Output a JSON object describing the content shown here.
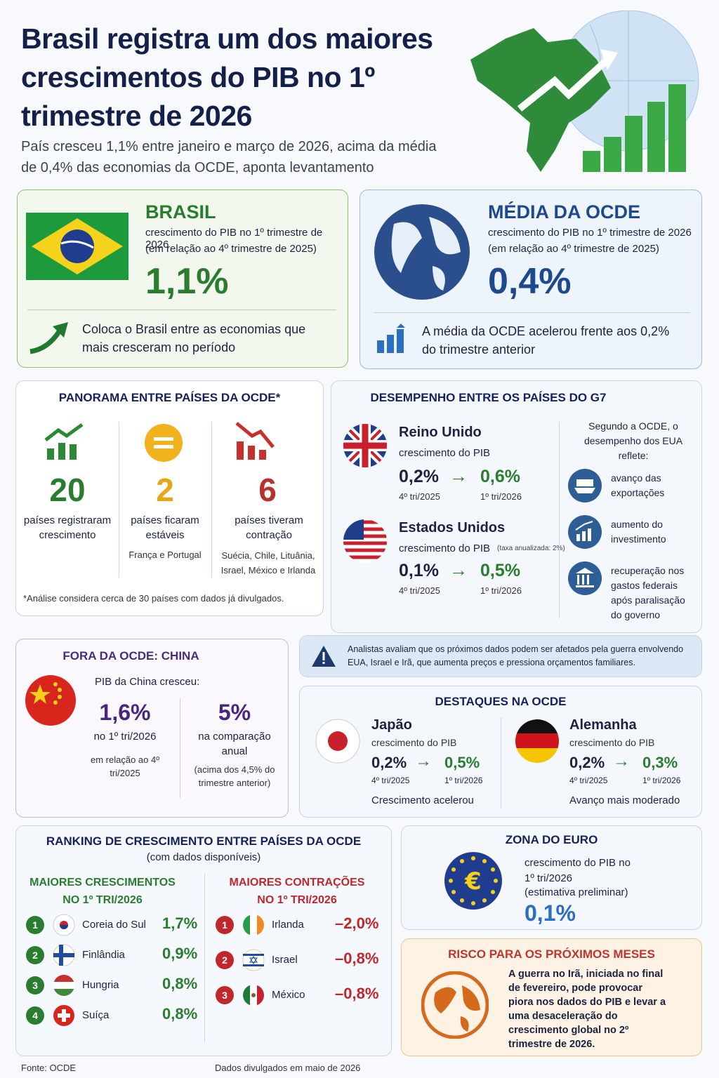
{
  "header": {
    "title": "Brasil registra um dos maiores crescimentos do PIB no 1º trimestre de 2026",
    "subtitle": "País cresceu 1,1% entre janeiro e março de 2026, acima da média de 0,4% das economias da OCDE, aponta levantamento"
  },
  "brasil": {
    "title": "BRASIL",
    "desc": "crescimento do PIB no 1º trimestre de 2026",
    "note": "(em relação ao 4º trimestre de 2025)",
    "value": "1,1%",
    "footer": "Coloca o Brasil entre as economias que mais cresceram no período"
  },
  "ocde": {
    "title": "MÉDIA DA OCDE",
    "desc": "crescimento do PIB no 1º trimestre de 2026",
    "note": "(em relação ao 4º trimestre de 2025)",
    "value": "0,4%",
    "footer": "A média da OCDE acelerou frente aos 0,2% do trimestre anterior"
  },
  "panorama": {
    "title": "PANORAMA ENTRE PAÍSES DA OCDE*",
    "items": [
      {
        "value": "20",
        "label": "países registraram crescimento"
      },
      {
        "value": "2",
        "label": "países ficaram estáveis",
        "detail": "França e Portugal"
      },
      {
        "value": "6",
        "label": "países tiveram contração",
        "detail": "Suécia, Chile, Lituânia, Israel, México e Irlanda"
      }
    ],
    "footnote": "*Análise considera cerca de 30 países com dados já divulgados."
  },
  "g7": {
    "title": "DESEMPENHO ENTRE OS PAÍSES DO G7",
    "countries": [
      {
        "name": "Reino Unido",
        "desc": "crescimento do PIB",
        "before": "0,2%",
        "before_label": "4º tri/2025",
        "after": "0,6%",
        "after_label": "1º tri/2026"
      },
      {
        "name": "Estados Unidos",
        "desc": "crescimento do PIB",
        "note": "(taxa anualizada: 2%)",
        "before": "0,1%",
        "before_label": "4º tri/2025",
        "after": "0,5%",
        "after_label": "1º tri/2026"
      }
    ],
    "intro": "Segundo a OCDE, o desempenho dos EUA reflete:",
    "factors": [
      "avanço das exportações",
      "aumento do investimento",
      "recuperação nos gastos federais após paralisação do governo"
    ]
  },
  "china": {
    "title": "FORA DA OCDE: CHINA",
    "intro": "PIB da China cresceu:",
    "items": [
      {
        "value": "1,6%",
        "label": "no 1º tri/2026",
        "note": "em relação ao 4º tri/2025"
      },
      {
        "value": "5%",
        "label": "na comparação anual",
        "note": "(acima dos 4,5% do trimestre anterior)"
      }
    ]
  },
  "alert": {
    "text": "Analistas avaliam que os próximos dados podem ser afetados pela guerra envolvendo EUA, Israel e Irã, que aumenta preços e pressiona orçamentos familiares."
  },
  "destaques": {
    "title": "DESTAQUES NA OCDE",
    "countries": [
      {
        "name": "Japão",
        "desc": "crescimento do PIB",
        "before": "0,2%",
        "before_label": "4º tri/2025",
        "after": "0,5%",
        "after_label": "1º tri/2026",
        "footer": "Crescimento acelerou"
      },
      {
        "name": "Alemanha",
        "desc": "crescimento do PIB",
        "before": "0,2%",
        "before_label": "4º tri/2025",
        "after": "0,3%",
        "after_label": "1º tri/2026",
        "footer": "Avanço mais moderado"
      }
    ]
  },
  "ranking": {
    "title": "RANKING DE CRESCIMENTO ENTRE PAÍSES DA OCDE",
    "subtitle": "(com dados disponíveis)",
    "top": {
      "title": "MAIORES CRESCIMENTOS NO 1º TRI/2026",
      "rows": [
        {
          "rank": 1,
          "country": "Coreia do Sul",
          "value": "1,7%"
        },
        {
          "rank": 2,
          "country": "Finlândia",
          "value": "0,9%"
        },
        {
          "rank": 3,
          "country": "Hungria",
          "value": "0,8%"
        },
        {
          "rank": 4,
          "country": "Suíça",
          "value": "0,8%"
        }
      ]
    },
    "bottom": {
      "title": "MAIORES CONTRAÇÕES NO 1º TRI/2026",
      "rows": [
        {
          "rank": 1,
          "country": "Irlanda",
          "value": "–2,0%"
        },
        {
          "rank": 2,
          "country": "Israel",
          "value": "–0,8%"
        },
        {
          "rank": 3,
          "country": "México",
          "value": "–0,8%"
        }
      ]
    }
  },
  "euro": {
    "title": "ZONA DO EURO",
    "desc": "crescimento do PIB no 1º tri/2026",
    "note": "(estimativa preliminar)",
    "value": "0,1%"
  },
  "risk": {
    "title": "RISCO PARA OS PRÓXIMOS MESES",
    "text": "A guerra no Irã, iniciada no final de fevereiro, pode provocar piora nos dados do PIB e levar a uma desaceleração do crescimento global no 2º trimestre de 2026."
  },
  "footer": {
    "source": "Fonte: OCDE",
    "date": "Dados divulgados em maio de 2026"
  }
}
